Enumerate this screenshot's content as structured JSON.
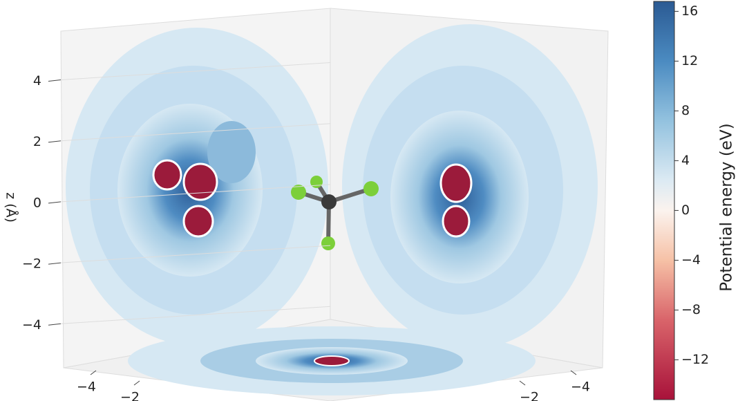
{
  "chart_data": {
    "type": "contour3d",
    "zlabel": "z (Å)",
    "zlim": [
      -5.4,
      5.6
    ],
    "zticks": [
      {
        "value": -4,
        "label": "−4"
      },
      {
        "value": -2,
        "label": "−2"
      },
      0,
      2,
      4
    ],
    "xticks": [
      {
        "value": -4,
        "label": "−4"
      },
      {
        "value": -2,
        "label": "−2"
      }
    ],
    "yticks": [
      {
        "value": -4,
        "label": "−4"
      },
      {
        "value": -2,
        "label": "−2"
      }
    ],
    "colorbar": {
      "label": "Potential energy (eV)",
      "clim": [
        -15.2,
        16.8
      ],
      "ticks": [
        {
          "value": -12,
          "label": "−12"
        },
        {
          "value": -8,
          "label": "−8"
        },
        {
          "value": -4,
          "label": "−4"
        },
        0,
        4,
        8,
        12,
        16
      ]
    }
  }
}
